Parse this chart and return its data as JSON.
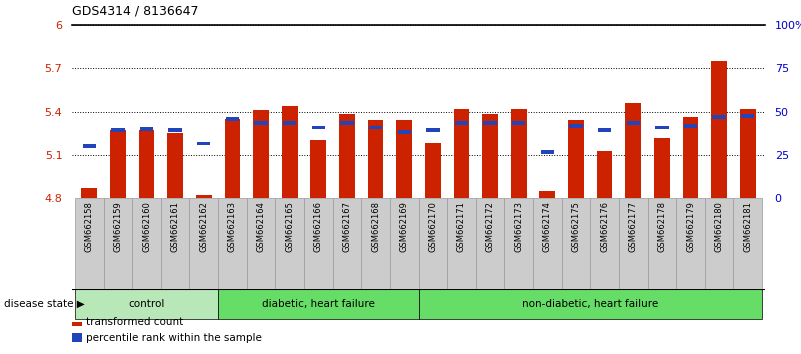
{
  "title": "GDS4314 / 8136647",
  "samples": [
    "GSM662158",
    "GSM662159",
    "GSM662160",
    "GSM662161",
    "GSM662162",
    "GSM662163",
    "GSM662164",
    "GSM662165",
    "GSM662166",
    "GSM662167",
    "GSM662168",
    "GSM662169",
    "GSM662170",
    "GSM662171",
    "GSM662172",
    "GSM662173",
    "GSM662174",
    "GSM662175",
    "GSM662176",
    "GSM662177",
    "GSM662178",
    "GSM662179",
    "GSM662180",
    "GSM662181"
  ],
  "red_values": [
    4.87,
    5.27,
    5.27,
    5.25,
    4.82,
    5.35,
    5.41,
    5.44,
    5.2,
    5.38,
    5.34,
    5.34,
    5.18,
    5.42,
    5.38,
    5.42,
    4.85,
    5.34,
    5.13,
    5.46,
    5.22,
    5.36,
    5.75,
    5.42
  ],
  "blue_values": [
    5.16,
    5.27,
    5.28,
    5.27,
    5.18,
    5.35,
    5.32,
    5.32,
    5.29,
    5.32,
    5.29,
    5.26,
    5.27,
    5.32,
    5.32,
    5.32,
    5.12,
    5.3,
    5.27,
    5.32,
    5.29,
    5.3,
    5.36,
    5.37
  ],
  "ylim_left": [
    4.8,
    6.0
  ],
  "ylim_right": [
    0,
    100
  ],
  "yticks_left": [
    4.8,
    5.1,
    5.4,
    5.7,
    6.0
  ],
  "ytick_labels_left": [
    "4.8",
    "5.1",
    "5.4",
    "5.7",
    "6"
  ],
  "yticks_right": [
    0,
    25,
    50,
    75,
    100
  ],
  "ytick_labels_right": [
    "0",
    "25",
    "50",
    "75",
    "100%"
  ],
  "group_ranges": [
    {
      "start": 0,
      "end": 4,
      "label": "control",
      "color": "#b8e8b8"
    },
    {
      "start": 5,
      "end": 11,
      "label": "diabetic, heart failure",
      "color": "#66dd66"
    },
    {
      "start": 12,
      "end": 23,
      "label": "non-diabetic, heart failure",
      "color": "#66dd66"
    }
  ],
  "bar_color": "#cc2200",
  "blue_color": "#2244bb",
  "bar_width": 0.55,
  "legend_items": [
    {
      "label": "transformed count",
      "color": "#cc2200"
    },
    {
      "label": "percentile rank within the sample",
      "color": "#2244bb"
    }
  ],
  "disease_state_label": "disease state",
  "bg_color": "#ffffff",
  "tick_bg_color": "#cccccc",
  "tick_border_color": "#999999"
}
